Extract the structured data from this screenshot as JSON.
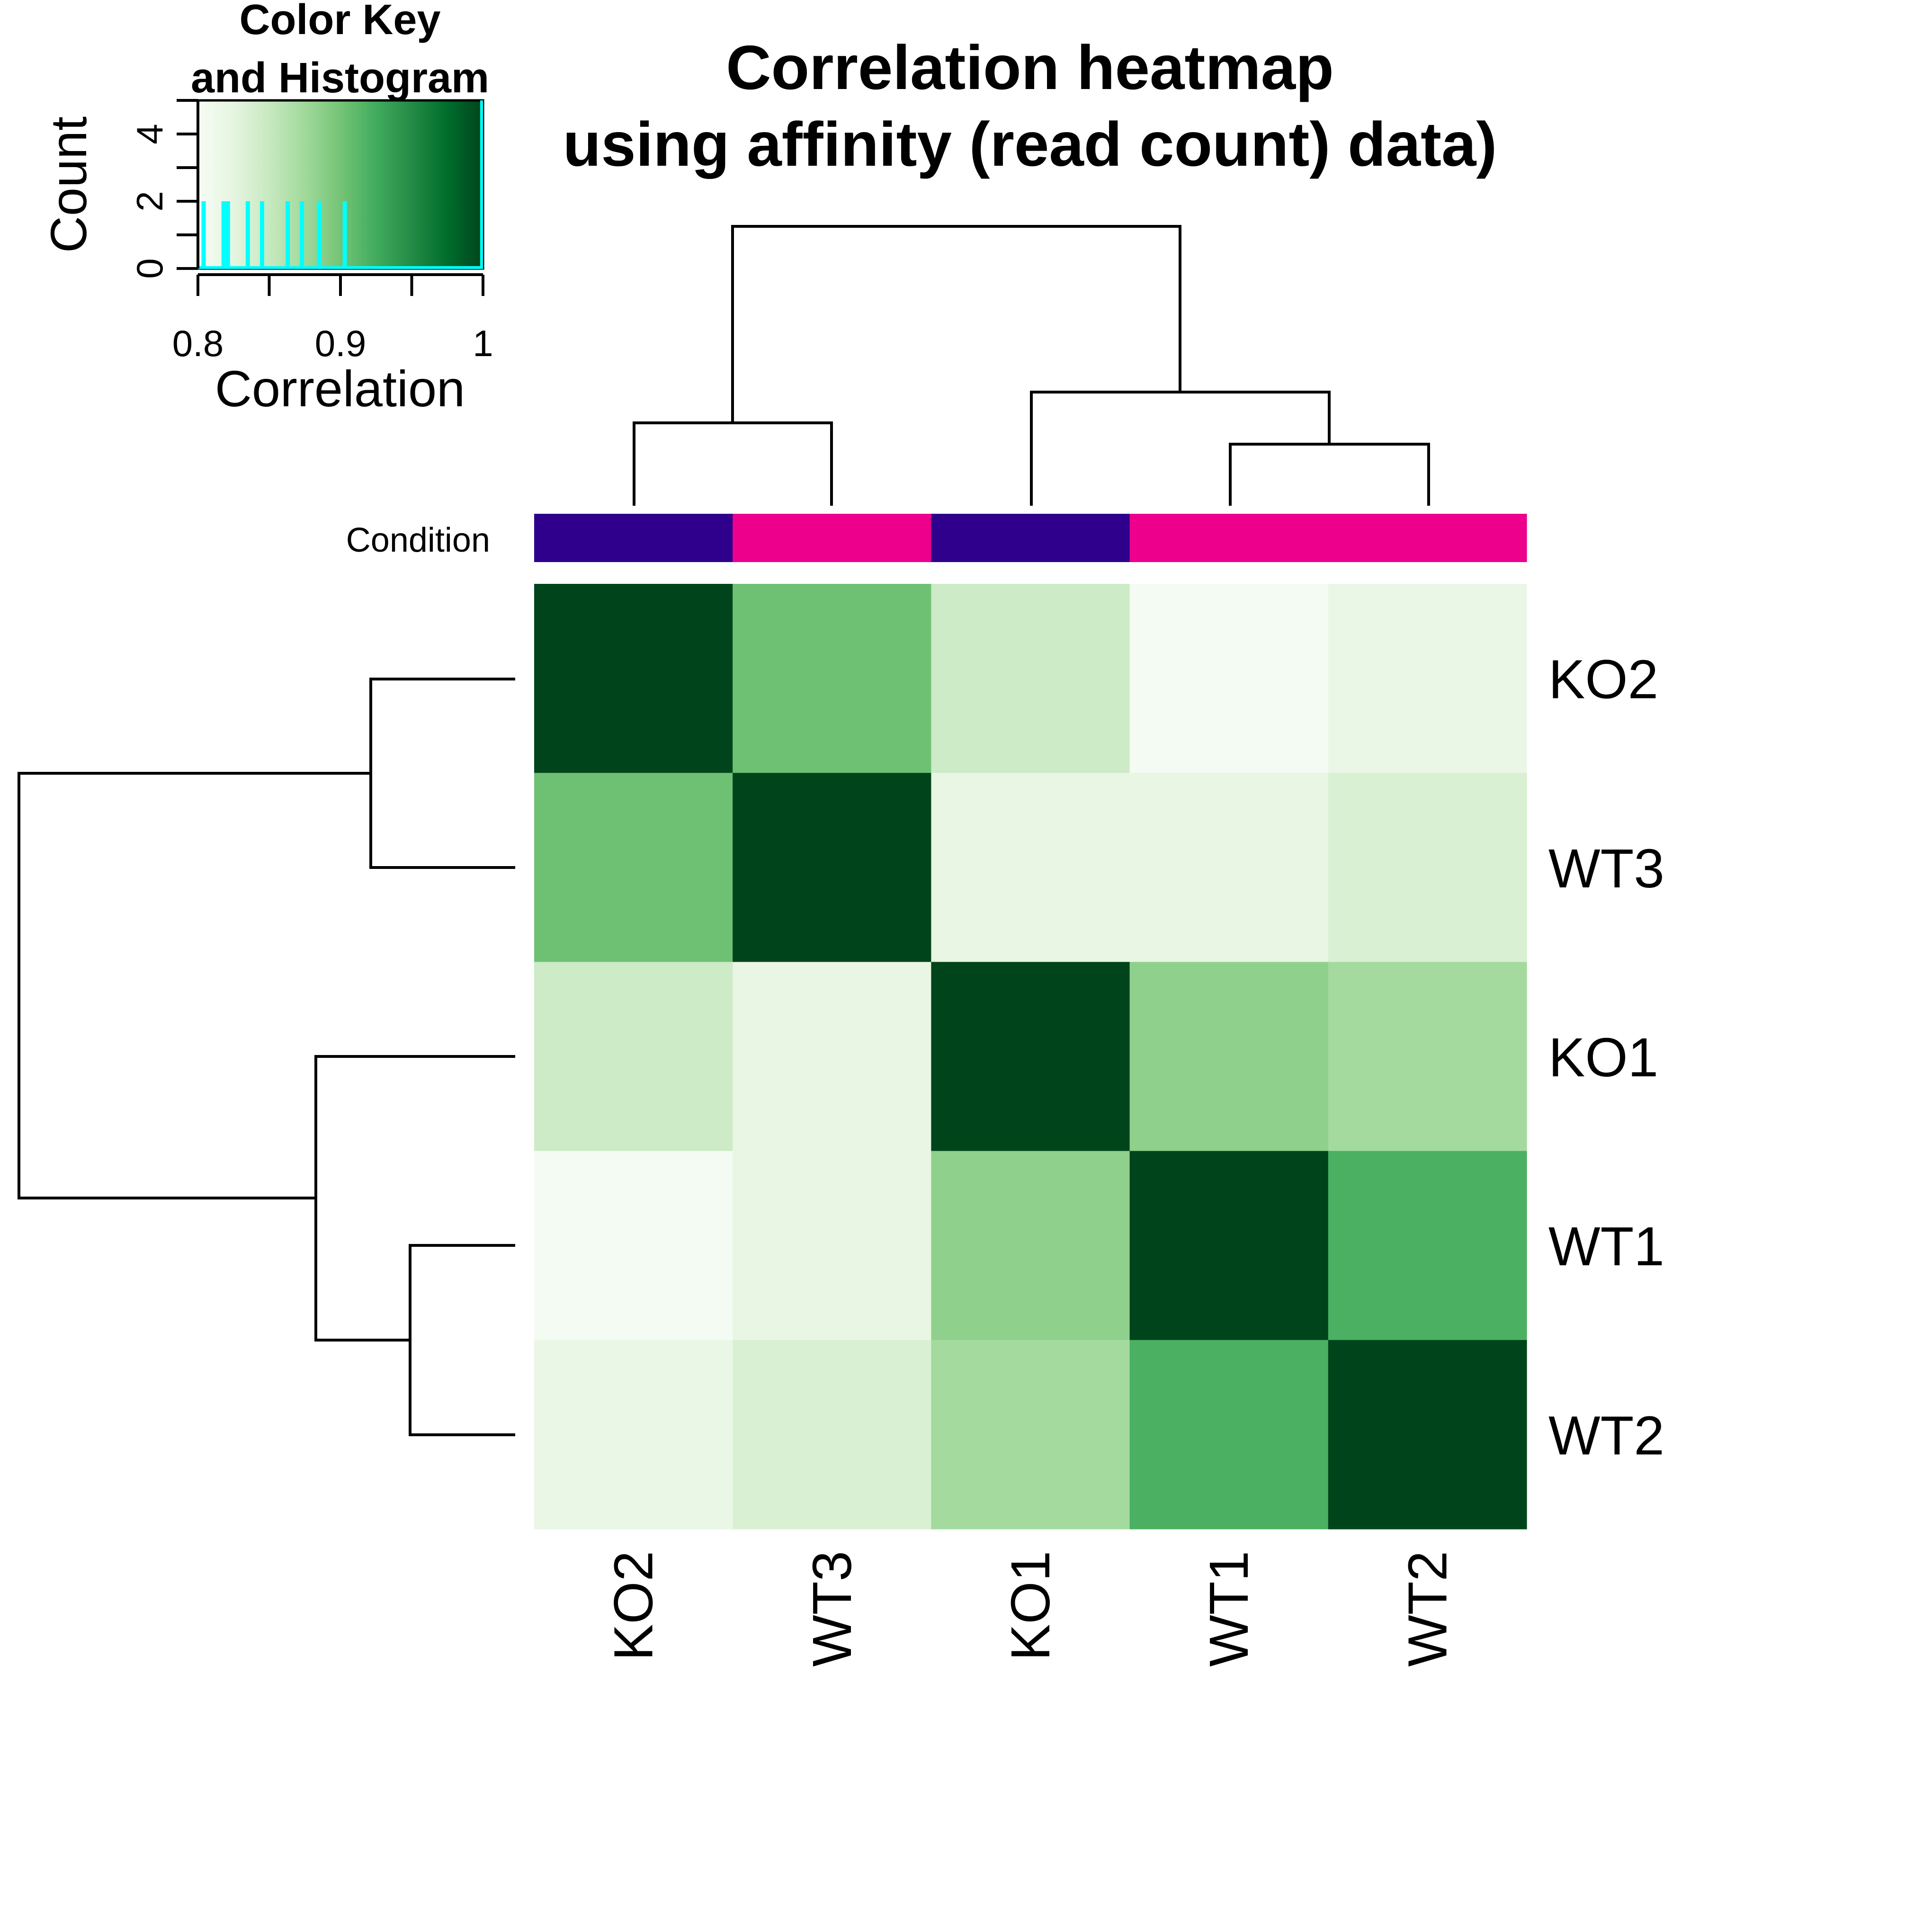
{
  "chart_data": {
    "type": "heatmap",
    "title_lines": [
      "Correlation heatmap",
      "using affinity (read count) data)"
    ],
    "color_key": {
      "title_lines": [
        "Color Key",
        "and Histogram"
      ],
      "xlabel": "Correlation",
      "ylabel": "Count",
      "x_ticks": [
        0.8,
        0.9,
        1
      ],
      "x_tick_labels": [
        "0.8",
        "0.9",
        "1"
      ],
      "y_ticks": [
        0,
        2,
        4
      ],
      "y_tick_labels": [
        "0",
        "2",
        "4"
      ],
      "xlim": [
        0.8,
        1.0
      ],
      "ylim": [
        0,
        5
      ],
      "colors": [
        "#f7fcf5",
        "#e5f5e0",
        "#c7e9c0",
        "#a1d99b",
        "#74c476",
        "#41ab5d",
        "#238b45",
        "#006d2c",
        "#00441b"
      ],
      "histogram": [
        {
          "x": 0.804,
          "count": 2
        },
        {
          "x": 0.818,
          "count": 2
        },
        {
          "x": 0.821,
          "count": 2
        },
        {
          "x": 0.835,
          "count": 2
        },
        {
          "x": 0.845,
          "count": 2
        },
        {
          "x": 0.863,
          "count": 2
        },
        {
          "x": 0.873,
          "count": 2
        },
        {
          "x": 0.885,
          "count": 2
        },
        {
          "x": 0.903,
          "count": 2
        }
      ],
      "histogram_color": "#00ffff"
    },
    "row_labels": [
      "KO2",
      "WT3",
      "KO1",
      "WT1",
      "WT2"
    ],
    "col_labels": [
      "KO2",
      "WT3",
      "KO1",
      "WT1",
      "WT2"
    ],
    "values": [
      [
        1.0,
        0.903,
        0.845,
        0.804,
        0.818
      ],
      [
        0.903,
        1.0,
        0.821,
        0.821,
        0.835
      ],
      [
        0.845,
        0.821,
        1.0,
        0.885,
        0.873
      ],
      [
        0.804,
        0.821,
        0.885,
        1.0,
        0.92
      ],
      [
        0.818,
        0.835,
        0.873,
        0.92,
        1.0
      ]
    ],
    "vlim": [
      0.8,
      1.0
    ],
    "condition": {
      "label": "Condition",
      "values": [
        "KO",
        "WT",
        "KO",
        "WT",
        "WT"
      ],
      "colors": {
        "KO": "#2e008b",
        "WT": "#ec008c"
      }
    },
    "column_dendrogram": {
      "left": [
        "KO2",
        "WT3"
      ],
      "right": [
        "KO1",
        [
          "WT1",
          "WT2"
        ]
      ]
    },
    "row_dendrogram": {
      "top": [
        "KO2",
        "WT3"
      ],
      "bottom": [
        "KO1",
        [
          "WT1",
          "WT2"
        ]
      ]
    }
  }
}
